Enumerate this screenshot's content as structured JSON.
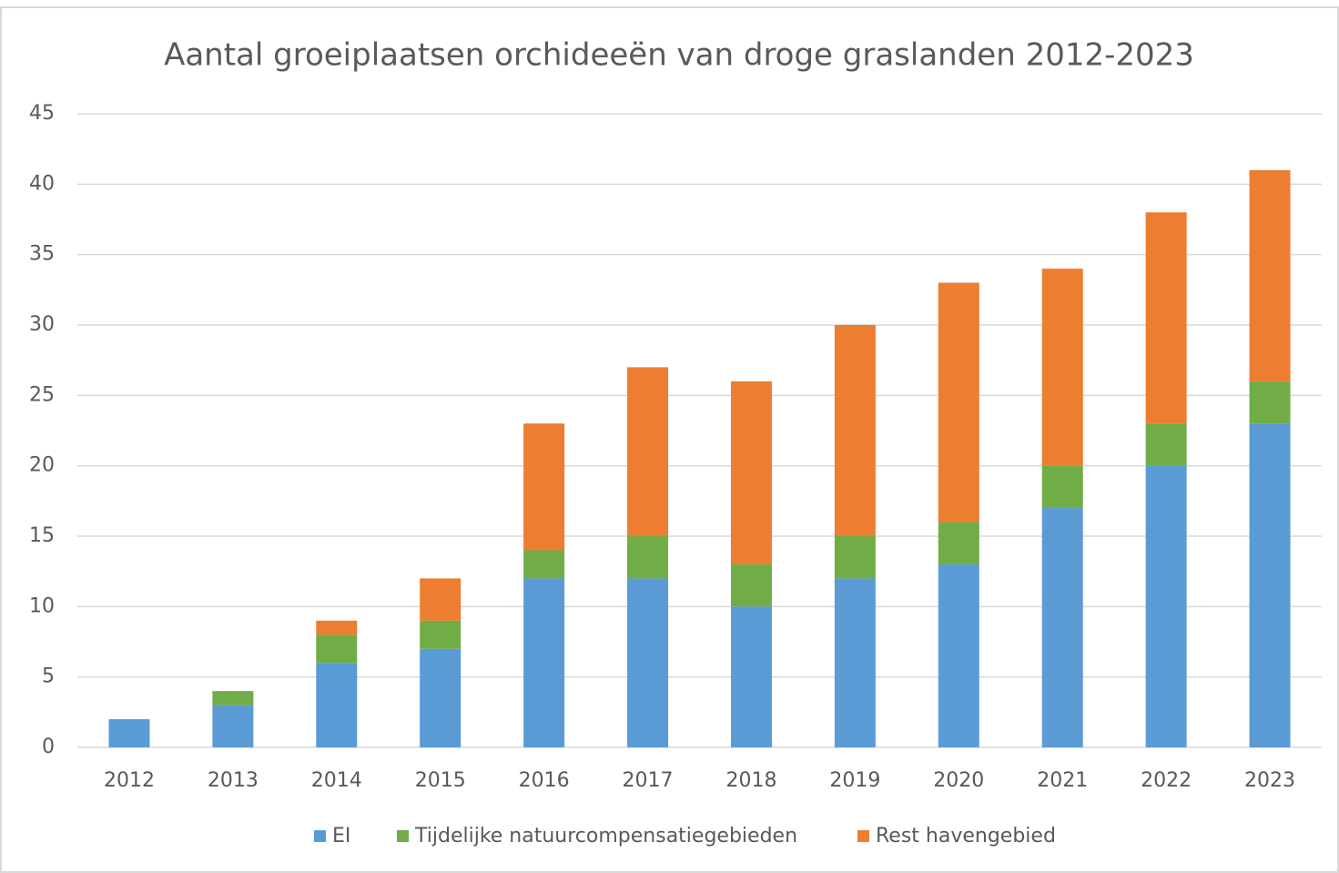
{
  "chart_data": {
    "type": "stacked_bar",
    "title": "Aantal groeiplaatsen orchideeën van droge graslanden 2012-2023",
    "categories": [
      "2012",
      "2013",
      "2014",
      "2015",
      "2016",
      "2017",
      "2018",
      "2019",
      "2020",
      "2021",
      "2022",
      "2023"
    ],
    "series": [
      {
        "name": "EI",
        "color": "#5b9bd5",
        "values": [
          2,
          3,
          6,
          7,
          12,
          12,
          10,
          12,
          13,
          17,
          20,
          23
        ]
      },
      {
        "name": "Tijdelijke natuurcompensatiegebieden",
        "color": "#70ad47",
        "values": [
          0,
          1,
          2,
          2,
          2,
          3,
          3,
          3,
          3,
          3,
          3,
          3
        ]
      },
      {
        "name": "Rest havengebied",
        "color": "#ed7d31",
        "values": [
          0,
          0,
          1,
          3,
          9,
          12,
          13,
          15,
          17,
          14,
          15,
          15
        ]
      }
    ],
    "ylim": [
      0,
      45
    ],
    "yticks": [
      0,
      5,
      10,
      15,
      20,
      25,
      30,
      35,
      40,
      45
    ],
    "grid": true,
    "legend": "bottom"
  }
}
